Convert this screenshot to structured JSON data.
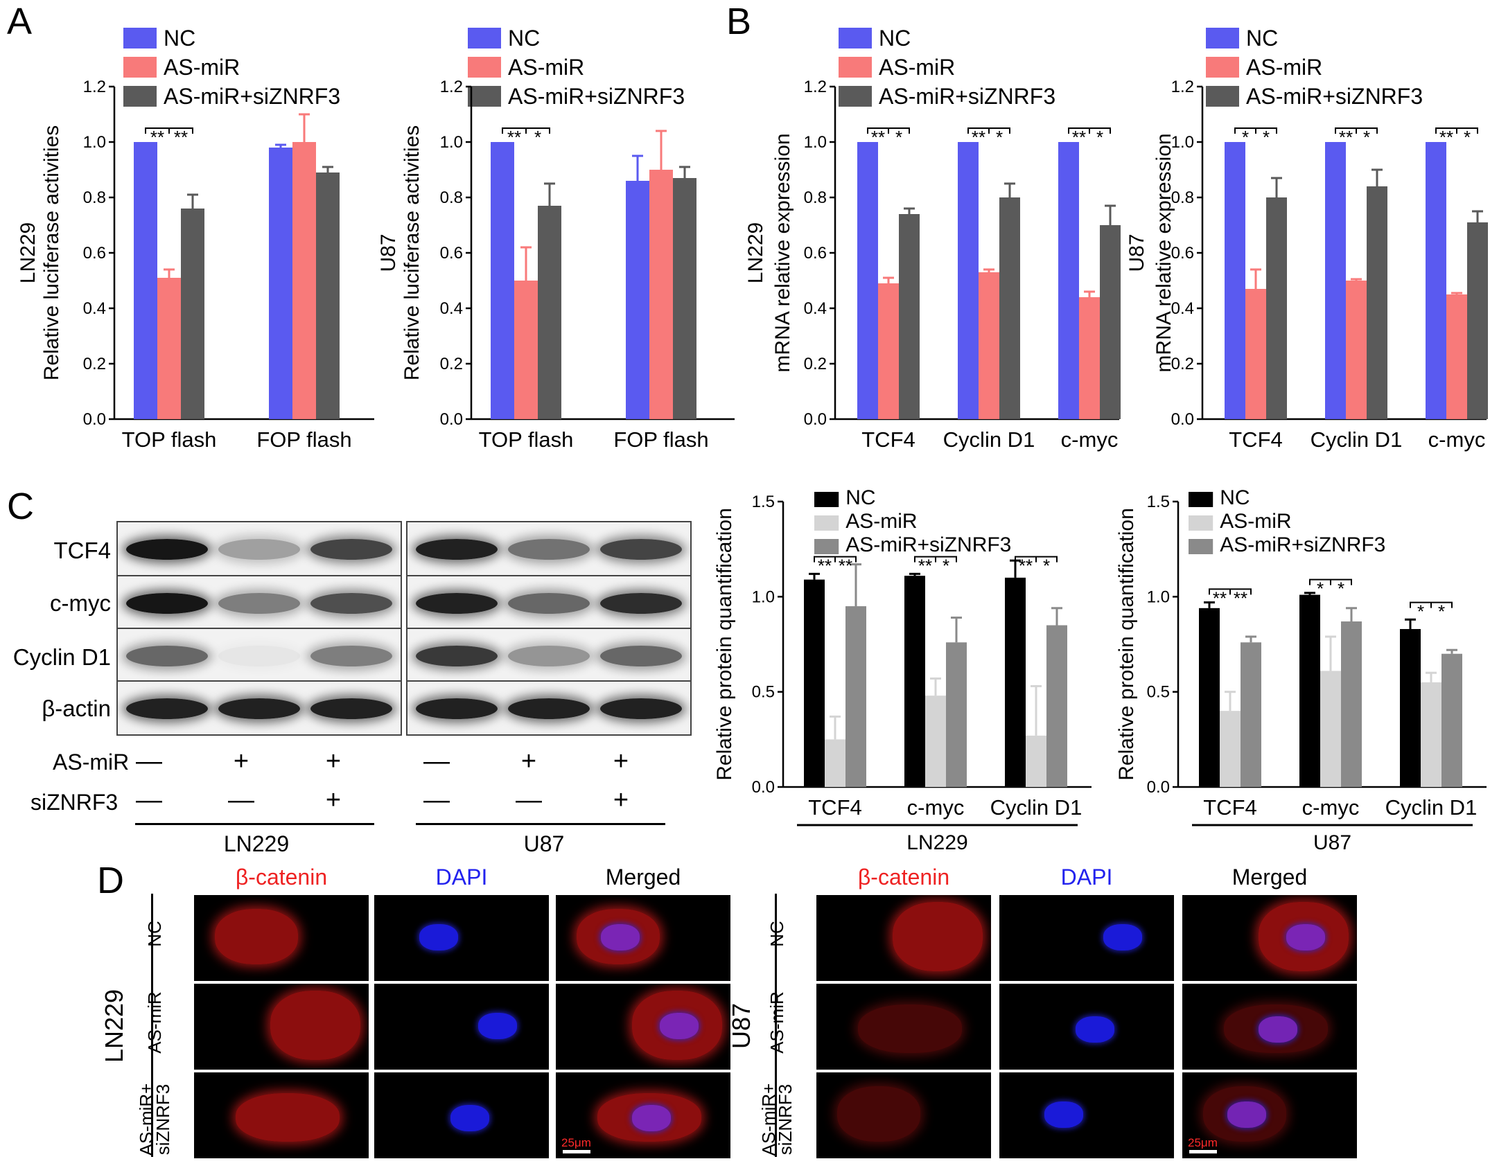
{
  "panels": {
    "A": "A",
    "B": "B",
    "C": "C",
    "D": "D"
  },
  "colors": {
    "nc": "#5a5af0",
    "asmir": "#f87a7a",
    "combo": "#5a5a5a",
    "c_nc": "#000000",
    "c_asmir": "#d4d4d4",
    "c_combo": "#8a8a8a"
  },
  "legend_AB": [
    "NC",
    "AS-miR",
    "AS-miR+siZNRF3"
  ],
  "legend_C": [
    "NC",
    "AS-miR",
    "AS-miR+siZNRF3"
  ],
  "chart_data": [
    {
      "type": "bar",
      "panel": "A",
      "ylabel": "LN229\nRelative luciferase activities",
      "ylim": [
        0,
        1.2
      ],
      "yticks": [
        "0.0",
        "0.2",
        "0.4",
        "0.6",
        "0.8",
        "1.0",
        "1.2"
      ],
      "categories": [
        "TOP flash",
        "FOP flash"
      ],
      "series": [
        {
          "name": "NC",
          "values": [
            1.0,
            0.98
          ],
          "err": [
            0,
            0.01
          ]
        },
        {
          "name": "AS-miR",
          "values": [
            0.51,
            1.0
          ],
          "err": [
            0.03,
            0.1
          ]
        },
        {
          "name": "AS-miR+siZNRF3",
          "values": [
            0.76,
            0.89
          ],
          "err": [
            0.05,
            0.02
          ]
        }
      ],
      "sig": [
        {
          "cat": 0,
          "left": "**",
          "right": "**"
        }
      ]
    },
    {
      "type": "bar",
      "panel": "A",
      "ylabel": "U87\nRelative luciferase activities",
      "ylim": [
        0,
        1.2
      ],
      "yticks": [
        "0.0",
        "0.2",
        "0.4",
        "0.6",
        "0.8",
        "1.0",
        "1.2"
      ],
      "categories": [
        "TOP flash",
        "FOP flash"
      ],
      "series": [
        {
          "name": "NC",
          "values": [
            1.0,
            0.86
          ],
          "err": [
            0,
            0.09
          ]
        },
        {
          "name": "AS-miR",
          "values": [
            0.5,
            0.9
          ],
          "err": [
            0.12,
            0.14
          ]
        },
        {
          "name": "AS-miR+siZNRF3",
          "values": [
            0.77,
            0.87
          ],
          "err": [
            0.08,
            0.04
          ]
        }
      ],
      "sig": [
        {
          "cat": 0,
          "left": "**",
          "right": "*"
        }
      ]
    },
    {
      "type": "bar",
      "panel": "B",
      "ylabel": "LN229\nmRNA relative expression",
      "ylim": [
        0,
        1.2
      ],
      "yticks": [
        "0.0",
        "0.2",
        "0.4",
        "0.6",
        "0.8",
        "1.0",
        "1.2"
      ],
      "categories": [
        "TCF4",
        "Cyclin D1",
        "c-myc"
      ],
      "series": [
        {
          "name": "NC",
          "values": [
            1.0,
            1.0,
            1.0
          ],
          "err": [
            0,
            0,
            0
          ]
        },
        {
          "name": "AS-miR",
          "values": [
            0.49,
            0.53,
            0.44
          ],
          "err": [
            0.02,
            0.01,
            0.02
          ]
        },
        {
          "name": "AS-miR+siZNRF3",
          "values": [
            0.74,
            0.8,
            0.7
          ],
          "err": [
            0.02,
            0.05,
            0.07
          ]
        }
      ],
      "sig": [
        {
          "cat": 0,
          "left": "**",
          "right": "*"
        },
        {
          "cat": 1,
          "left": "**",
          "right": "*"
        },
        {
          "cat": 2,
          "left": "**",
          "right": "*"
        }
      ]
    },
    {
      "type": "bar",
      "panel": "B",
      "ylabel": "U87\nmRNA relative expression",
      "ylim": [
        0,
        1.2
      ],
      "yticks": [
        "0.0",
        "0.2",
        "0.4",
        "0.6",
        "0.8",
        "1.0",
        "1.2"
      ],
      "categories": [
        "TCF4",
        "Cyclin D1",
        "c-myc"
      ],
      "series": [
        {
          "name": "NC",
          "values": [
            1.0,
            1.0,
            1.0
          ],
          "err": [
            0,
            0,
            0
          ]
        },
        {
          "name": "AS-miR",
          "values": [
            0.47,
            0.5,
            0.45
          ],
          "err": [
            0.07,
            0.005,
            0.005
          ]
        },
        {
          "name": "AS-miR+siZNRF3",
          "values": [
            0.8,
            0.84,
            0.71
          ],
          "err": [
            0.07,
            0.06,
            0.04
          ]
        }
      ],
      "sig": [
        {
          "cat": 0,
          "left": "*",
          "right": "*"
        },
        {
          "cat": 1,
          "left": "**",
          "right": "*"
        },
        {
          "cat": 2,
          "left": "**",
          "right": "*"
        }
      ]
    },
    {
      "type": "bar",
      "panel": "C",
      "ylabel": "Relative protein quantification",
      "ylim": [
        0,
        1.5
      ],
      "yticks": [
        "0.0",
        "0.5",
        "1.0",
        "1.5"
      ],
      "categories": [
        "TCF4",
        "c-myc",
        "Cyclin D1"
      ],
      "group_label": "LN229",
      "series": [
        {
          "name": "NC",
          "values": [
            1.09,
            1.11,
            1.1
          ],
          "err": [
            0.03,
            0.01,
            0.09
          ]
        },
        {
          "name": "AS-miR",
          "values": [
            0.25,
            0.48,
            0.27
          ],
          "err": [
            0.12,
            0.09,
            0.26
          ]
        },
        {
          "name": "AS-miR+siZNRF3",
          "values": [
            0.95,
            0.76,
            0.85
          ],
          "err": [
            0.22,
            0.13,
            0.09
          ]
        }
      ],
      "sig": [
        {
          "cat": 0,
          "left": "**",
          "right": "**"
        },
        {
          "cat": 1,
          "left": "**",
          "right": "*"
        },
        {
          "cat": 2,
          "left": "**",
          "right": "*"
        }
      ]
    },
    {
      "type": "bar",
      "panel": "C",
      "ylabel": "Relative protein quantification",
      "ylim": [
        0,
        1.5
      ],
      "yticks": [
        "0.0",
        "0.5",
        "1.0",
        "1.5"
      ],
      "categories": [
        "TCF4",
        "c-myc",
        "Cyclin D1"
      ],
      "group_label": "U87",
      "series": [
        {
          "name": "NC",
          "values": [
            0.94,
            1.01,
            0.83
          ],
          "err": [
            0.03,
            0.01,
            0.05
          ]
        },
        {
          "name": "AS-miR",
          "values": [
            0.4,
            0.61,
            0.55
          ],
          "err": [
            0.1,
            0.18,
            0.05
          ]
        },
        {
          "name": "AS-miR+siZNRF3",
          "values": [
            0.76,
            0.87,
            0.7
          ],
          "err": [
            0.03,
            0.07,
            0.02
          ]
        }
      ],
      "sig": [
        {
          "cat": 0,
          "left": "**",
          "right": "**"
        },
        {
          "cat": 1,
          "left": "*",
          "right": "*"
        },
        {
          "cat": 2,
          "left": "*",
          "right": "*"
        }
      ]
    }
  ],
  "western": {
    "proteins": [
      "TCF4",
      "c-myc",
      "Cyclin D1",
      "β-actin"
    ],
    "treatments": {
      "asmir_label": "AS-miR",
      "sizn_label": "siZNRF3",
      "asmir": [
        "—",
        "+",
        "+",
        "—",
        "+",
        "+"
      ],
      "sizn": [
        "—",
        "—",
        "+",
        "—",
        "—",
        "+"
      ]
    },
    "groups": [
      "LN229",
      "U87"
    ]
  },
  "if": {
    "col_titles": [
      "β-catenin",
      "DAPI",
      "Merged"
    ],
    "col_colors": [
      "#ee2222",
      "#2222ee",
      "#000000"
    ],
    "rows": [
      "NC",
      "AS-miR",
      "AS-miR+\nsiZNRF3"
    ],
    "groups": [
      "LN229",
      "U87"
    ],
    "scale": "25μm"
  }
}
